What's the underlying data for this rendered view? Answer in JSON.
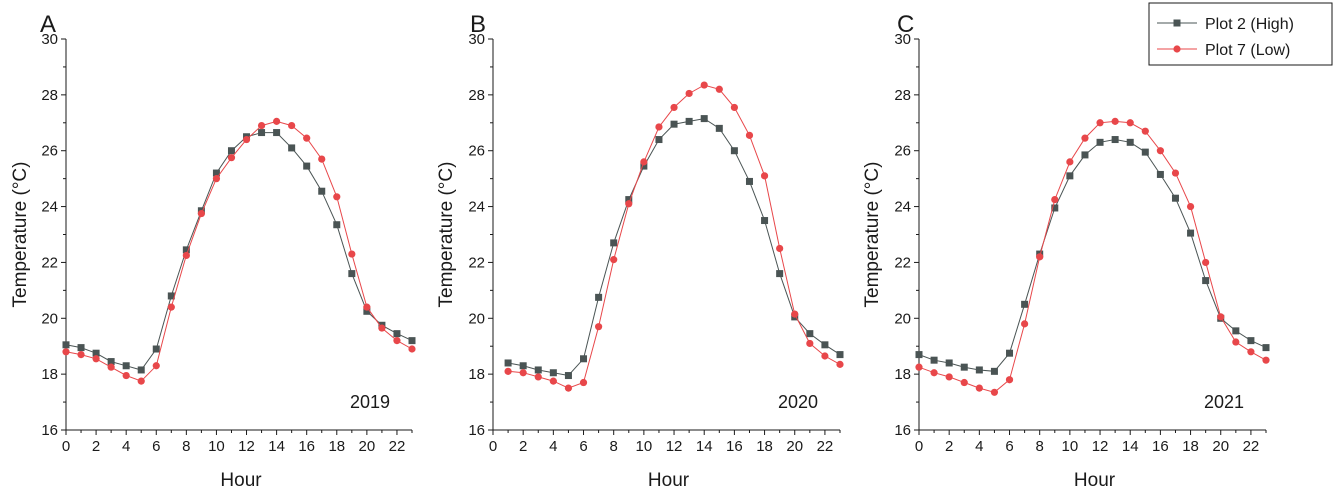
{
  "chart_data": [
    {
      "type": "line",
      "panel_label": "A",
      "annotation": "2019",
      "xlabel": "Hour",
      "ylabel": "Temperature (°C)",
      "xlim": [
        0,
        23
      ],
      "ylim": [
        16,
        30
      ],
      "xticks": [
        0,
        2,
        4,
        6,
        8,
        10,
        12,
        14,
        16,
        18,
        20,
        22
      ],
      "yticks": [
        16,
        18,
        20,
        22,
        24,
        26,
        28,
        30
      ],
      "x": [
        0,
        1,
        2,
        3,
        4,
        5,
        6,
        7,
        8,
        9,
        10,
        11,
        12,
        13,
        14,
        15,
        16,
        17,
        18,
        19,
        20,
        21,
        22,
        23
      ],
      "series": [
        {
          "name": "Plot 2 (High)",
          "color": "#4a5454",
          "marker": "square",
          "values": [
            19.05,
            18.95,
            18.75,
            18.45,
            18.3,
            18.15,
            18.9,
            20.8,
            22.45,
            23.85,
            25.2,
            26.0,
            26.5,
            26.65,
            26.65,
            26.1,
            25.45,
            24.55,
            23.35,
            21.6,
            20.25,
            19.75,
            19.45,
            19.2
          ]
        },
        {
          "name": "Plot 7 (Low)",
          "color": "#e8474a",
          "marker": "circle",
          "values": [
            18.8,
            18.7,
            18.55,
            18.25,
            17.95,
            17.75,
            18.3,
            20.4,
            22.25,
            23.75,
            25.0,
            25.75,
            26.4,
            26.9,
            27.05,
            26.9,
            26.45,
            25.7,
            24.35,
            22.3,
            20.4,
            19.65,
            19.2,
            18.9
          ]
        }
      ],
      "grid": false
    },
    {
      "type": "line",
      "panel_label": "B",
      "annotation": "2020",
      "xlabel": "Hour",
      "ylabel": "Temperature (°C)",
      "xlim": [
        0,
        23
      ],
      "ylim": [
        16,
        30
      ],
      "xticks": [
        0,
        2,
        4,
        6,
        8,
        10,
        12,
        14,
        16,
        18,
        20,
        22
      ],
      "yticks": [
        16,
        18,
        20,
        22,
        24,
        26,
        28,
        30
      ],
      "x": [
        1,
        2,
        3,
        4,
        5,
        6,
        7,
        8,
        9,
        10,
        11,
        12,
        13,
        14,
        15,
        16,
        17,
        18,
        19,
        20,
        21,
        22,
        23
      ],
      "series": [
        {
          "name": "Plot 2 (High)",
          "color": "#4a5454",
          "marker": "square",
          "values": [
            18.4,
            18.3,
            18.15,
            18.05,
            17.95,
            18.55,
            20.75,
            22.7,
            24.25,
            25.45,
            26.4,
            26.95,
            27.05,
            27.15,
            26.8,
            26.0,
            24.9,
            23.5,
            21.6,
            20.05,
            19.45,
            19.05,
            18.7
          ]
        },
        {
          "name": "Plot 7 (Low)",
          "color": "#e8474a",
          "marker": "circle",
          "values": [
            18.1,
            18.05,
            17.9,
            17.75,
            17.5,
            17.7,
            19.7,
            22.1,
            24.1,
            25.6,
            26.85,
            27.55,
            28.05,
            28.35,
            28.2,
            27.55,
            26.55,
            25.1,
            22.5,
            20.15,
            19.1,
            18.65,
            18.35
          ]
        }
      ],
      "grid": false
    },
    {
      "type": "line",
      "panel_label": "C",
      "annotation": "2021",
      "xlabel": "Hour",
      "ylabel": "Temperature (°C)",
      "xlim": [
        0,
        23
      ],
      "ylim": [
        16,
        30
      ],
      "xticks": [
        0,
        2,
        4,
        6,
        8,
        10,
        12,
        14,
        16,
        18,
        20,
        22
      ],
      "yticks": [
        16,
        18,
        20,
        22,
        24,
        26,
        28,
        30
      ],
      "x": [
        0,
        1,
        2,
        3,
        4,
        5,
        6,
        7,
        8,
        9,
        10,
        11,
        12,
        13,
        14,
        15,
        16,
        17,
        18,
        19,
        20,
        21,
        22,
        23
      ],
      "series": [
        {
          "name": "Plot 2 (High)",
          "color": "#4a5454",
          "marker": "square",
          "values": [
            18.7,
            18.5,
            18.4,
            18.25,
            18.15,
            18.1,
            18.75,
            20.5,
            22.3,
            23.95,
            25.1,
            25.85,
            26.3,
            26.4,
            26.3,
            25.95,
            25.15,
            24.3,
            23.05,
            21.35,
            20.0,
            19.55,
            19.2,
            18.95
          ]
        },
        {
          "name": "Plot 7 (Low)",
          "color": "#e8474a",
          "marker": "circle",
          "values": [
            18.25,
            18.05,
            17.9,
            17.7,
            17.5,
            17.35,
            17.8,
            19.8,
            22.2,
            24.25,
            25.6,
            26.45,
            27.0,
            27.05,
            27.0,
            26.7,
            26.0,
            25.2,
            24.0,
            22.0,
            20.05,
            19.15,
            18.8,
            18.5
          ]
        }
      ],
      "grid": false,
      "legend": {
        "placement": "top-right",
        "entries": [
          "Plot 2 (High)",
          "Plot 7 (Low)"
        ]
      }
    }
  ]
}
